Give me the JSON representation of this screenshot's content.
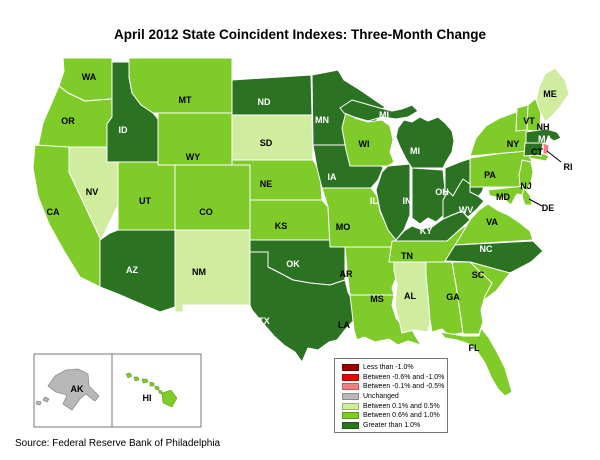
{
  "title": "April 2012 State Coincident Indexes: Three-Month Change",
  "source": "Source: Federal Reserve Bank of Philadelphia",
  "legend": {
    "items": [
      {
        "label": "Less than -1.0%",
        "color": "#990000"
      },
      {
        "label": "Between -0.6% and -1.0%",
        "color": "#EE0000"
      },
      {
        "label": "Between -0.1% and -0.5%",
        "color": "#F08080"
      },
      {
        "label": "Unchanged",
        "color": "#B8B8B8"
      },
      {
        "label": "Between 0.1% and 0.5%",
        "color": "#CFEC9F"
      },
      {
        "label": "Between 0.6% and 1.0%",
        "color": "#7FCB2A"
      },
      {
        "label": "Greater than 1.0%",
        "color": "#2B7222"
      }
    ]
  },
  "map": {
    "states": [
      {
        "abbr": "WA",
        "category": 5
      },
      {
        "abbr": "OR",
        "category": 5
      },
      {
        "abbr": "CA",
        "category": 5
      },
      {
        "abbr": "NV",
        "category": 4
      },
      {
        "abbr": "ID",
        "category": 6
      },
      {
        "abbr": "MT",
        "category": 5
      },
      {
        "abbr": "WY",
        "category": 5
      },
      {
        "abbr": "UT",
        "category": 5
      },
      {
        "abbr": "CO",
        "category": 5
      },
      {
        "abbr": "AZ",
        "category": 6
      },
      {
        "abbr": "NM",
        "category": 4
      },
      {
        "abbr": "ND",
        "category": 6
      },
      {
        "abbr": "SD",
        "category": 4
      },
      {
        "abbr": "NE",
        "category": 5
      },
      {
        "abbr": "KS",
        "category": 5
      },
      {
        "abbr": "OK",
        "category": 6
      },
      {
        "abbr": "TX",
        "category": 6
      },
      {
        "abbr": "MN",
        "category": 6
      },
      {
        "abbr": "IA",
        "category": 6
      },
      {
        "abbr": "MO",
        "category": 5
      },
      {
        "abbr": "AR",
        "category": 5
      },
      {
        "abbr": "LA",
        "category": 5
      },
      {
        "abbr": "WI",
        "category": 5
      },
      {
        "abbr": "IL",
        "category": 6
      },
      {
        "abbr": "MS",
        "category": 4
      },
      {
        "abbr": "AL",
        "category": 5
      },
      {
        "abbr": "TN",
        "category": 5
      },
      {
        "abbr": "KY",
        "category": 6
      },
      {
        "abbr": "IN",
        "category": 6
      },
      {
        "abbr": "OH",
        "category": 6
      },
      {
        "abbr": "MI",
        "category": 6
      },
      {
        "abbr": "WV",
        "category": 6
      },
      {
        "abbr": "VA",
        "category": 5
      },
      {
        "abbr": "NC",
        "category": 6
      },
      {
        "abbr": "SC",
        "category": 5
      },
      {
        "abbr": "GA",
        "category": 5
      },
      {
        "abbr": "FL",
        "category": 5
      },
      {
        "abbr": "PA",
        "category": 5
      },
      {
        "abbr": "NY",
        "category": 5
      },
      {
        "abbr": "NJ",
        "category": 5
      },
      {
        "abbr": "MD",
        "category": 5
      },
      {
        "abbr": "DE",
        "category": 5
      },
      {
        "abbr": "VT",
        "category": 5
      },
      {
        "abbr": "NH",
        "category": 5
      },
      {
        "abbr": "ME",
        "category": 4
      },
      {
        "abbr": "MA",
        "category": 6
      },
      {
        "abbr": "CT",
        "category": 6
      },
      {
        "abbr": "RI",
        "category": 2
      },
      {
        "abbr": "AK",
        "category": 3
      },
      {
        "abbr": "HI",
        "category": 5
      }
    ]
  }
}
